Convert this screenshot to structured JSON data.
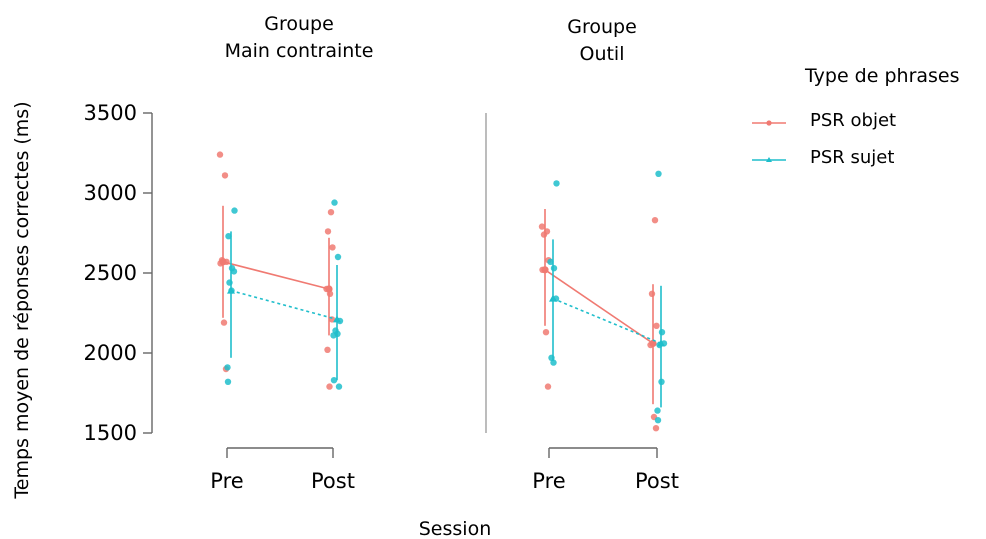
{
  "chart_data": {
    "type": "scatter",
    "xlabel": "Session",
    "ylabel": "Temps moyen de réponses correctes (ms)",
    "ylim": [
      1500,
      3500
    ],
    "yticks": [
      1500,
      2000,
      2500,
      3000,
      3500
    ],
    "categories": [
      "Pre",
      "Post"
    ],
    "legend": {
      "title": "Type de phrases",
      "placement": "right"
    },
    "series": [
      {
        "name": "PSR objet",
        "color": "#f07a72",
        "line_style": "solid",
        "marker": "circle"
      },
      {
        "name": "PSR sujet",
        "color": "#1fbecb",
        "line_style": "dashed",
        "marker": "triangle"
      }
    ],
    "panels": [
      {
        "title_line1": "Groupe",
        "title_line2": "Main contrainte",
        "groups": [
          {
            "series": "PSR objet",
            "mean": [
              2570,
              2400
            ],
            "ci": [
              [
                2920,
                2220
              ],
              [
                2720,
                2110
              ]
            ],
            "points": [
              [
                3240,
                3110,
                2580,
                2570,
                2560,
                2190,
                1900
              ],
              [
                2880,
                2760,
                2660,
                2400,
                2370,
                2210,
                2020,
                1790
              ]
            ]
          },
          {
            "series": "PSR sujet",
            "mean": [
              2390,
              2210
            ],
            "ci": [
              [
                2760,
                1970
              ],
              [
                2550,
                1830
              ]
            ],
            "points": [
              [
                2890,
                2730,
                2530,
                2510,
                2440,
                2390,
                1910,
                1820
              ],
              [
                2940,
                2600,
                2200,
                2140,
                2120,
                2110,
                1830,
                1790
              ]
            ]
          }
        ]
      },
      {
        "title_line1": "Groupe",
        "title_line2": "Outil",
        "groups": [
          {
            "series": "PSR objet",
            "mean": [
              2520,
              2060
            ],
            "ci": [
              [
                2900,
                2170
              ],
              [
                2430,
                1680
              ]
            ],
            "points": [
              [
                2790,
                2760,
                2740,
                2580,
                2520,
                2130,
                1790
              ],
              [
                2830,
                2370,
                2170,
                2050,
                1600,
                1530
              ]
            ]
          },
          {
            "series": "PSR sujet",
            "mean": [
              2340,
              2060
            ],
            "ci": [
              [
                2710,
                1950
              ],
              [
                2420,
                1660
              ]
            ],
            "points": [
              [
                3060,
                2570,
                2530,
                2340,
                1970,
                1940
              ],
              [
                3120,
                2130,
                2060,
                2050,
                1820,
                1640,
                1580
              ]
            ]
          }
        ]
      }
    ]
  }
}
